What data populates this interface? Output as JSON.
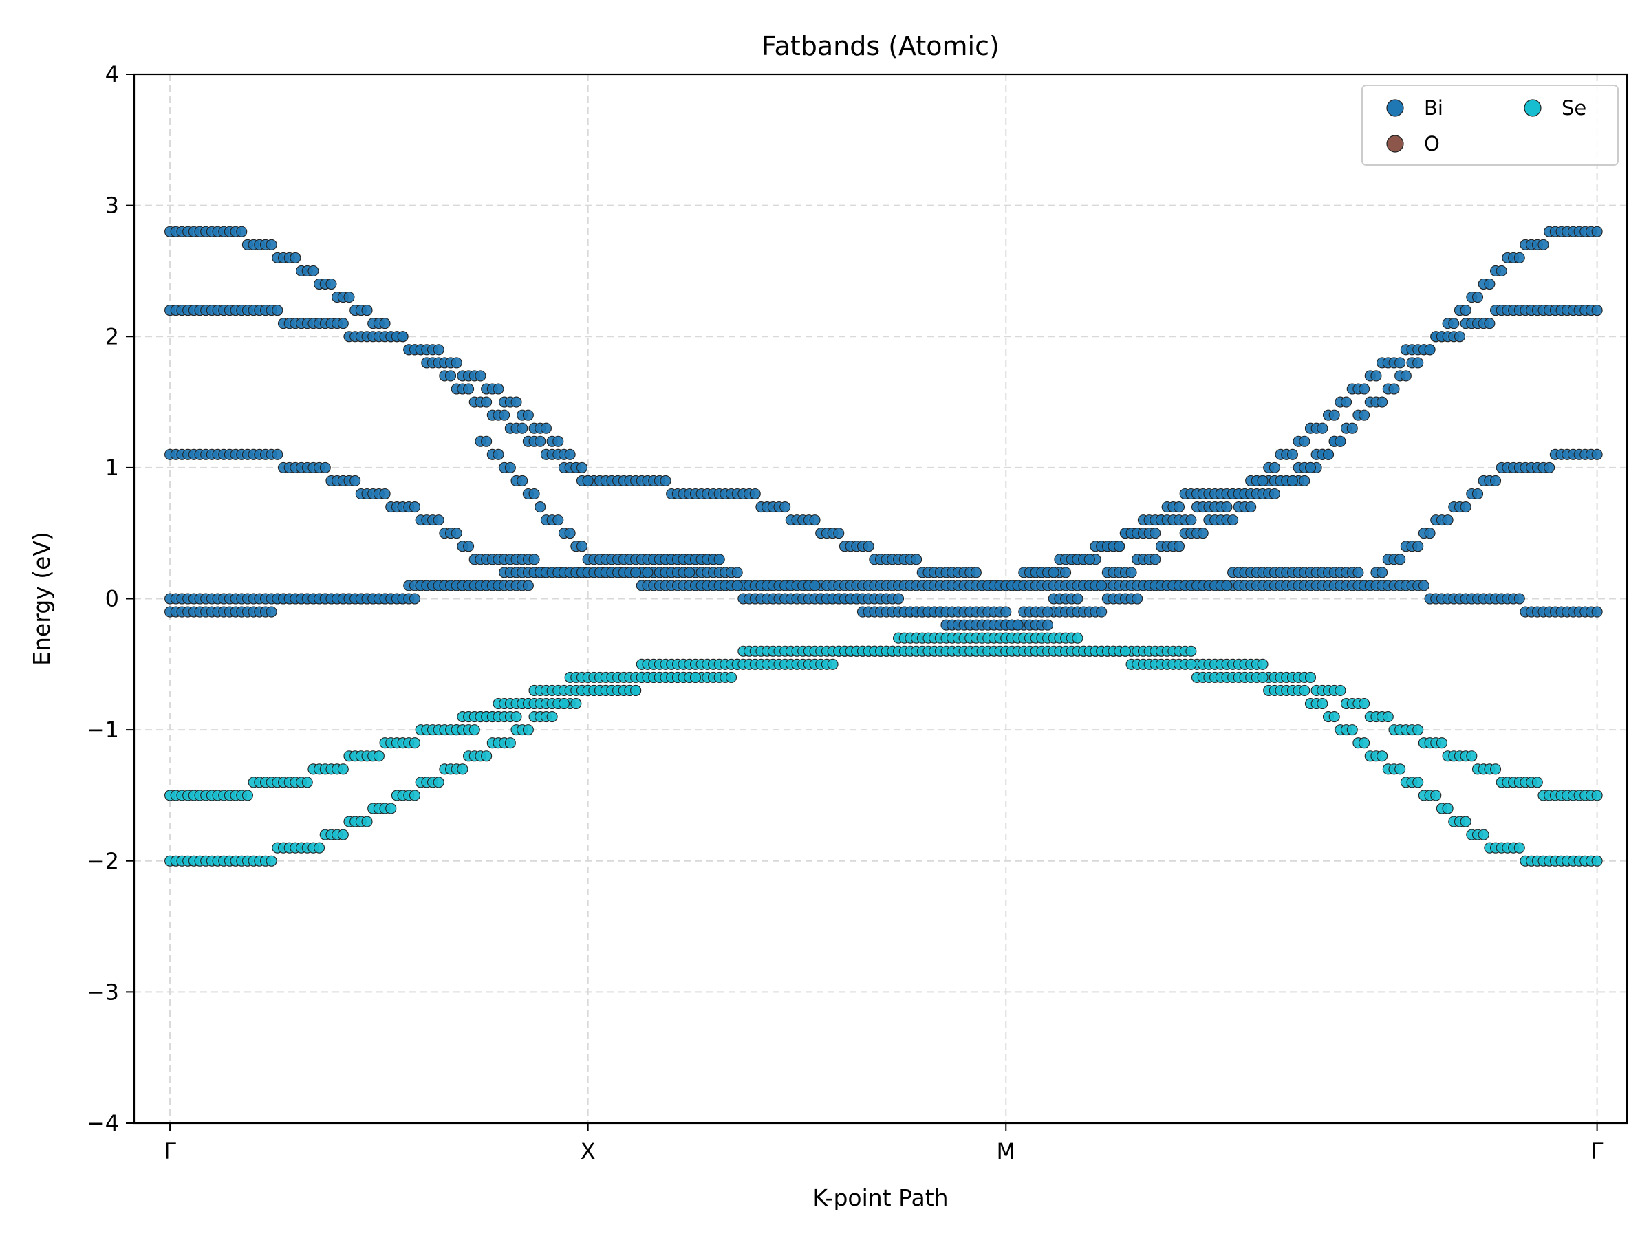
{
  "chart_data": {
    "type": "scatter",
    "title": "Fatbands (Atomic)",
    "xlabel": "K-point Path",
    "ylabel": "Energy (eV)",
    "ylim": [
      -4,
      4
    ],
    "yticks": [
      -4,
      -3,
      -2,
      -1,
      0,
      1,
      2,
      3,
      4
    ],
    "ytick_labels": [
      "−4",
      "−3",
      "−2",
      "−1",
      "0",
      "1",
      "2",
      "3",
      "4"
    ],
    "k_points": 60,
    "xticks": [
      {
        "k": 0,
        "label": "Γ"
      },
      {
        "k": 17.5,
        "label": "X"
      },
      {
        "k": 35,
        "label": "M"
      },
      {
        "k": 59.75,
        "label": "Γ"
      }
    ],
    "grid": true,
    "legend": {
      "position": "top-right",
      "columns": 2
    },
    "series": [
      {
        "name": "Bi",
        "color": "#1f77b4",
        "bands": [
          {
            "path": [
              [
                0,
                2.8
              ],
              [
                2.5,
                2.8
              ],
              [
                5,
                2.6
              ],
              [
                17.5,
                0.9
              ],
              [
                24,
                0.8
              ],
              [
                30,
                0.3
              ],
              [
                35,
                0.1
              ]
            ],
            "mirror": true
          },
          {
            "path": [
              [
                0,
                2.2
              ],
              [
                3,
                2.2
              ],
              [
                6,
                2.1
              ],
              [
                11,
                1.9
              ],
              [
                15,
                1.4
              ],
              [
                17.5,
                0.9
              ]
            ],
            "mirror": false
          },
          {
            "path": [
              [
                35,
                0.1
              ],
              [
                45,
                0.8
              ],
              [
                51,
                1.8
              ],
              [
                56,
                2.2
              ],
              [
                59.75,
                2.2
              ]
            ],
            "mirror": false
          },
          {
            "path": [
              [
                13,
                1.2
              ],
              [
                17.5,
                0.3
              ],
              [
                23,
                0.3
              ]
            ],
            "mirror": false
          },
          {
            "path": [
              [
                0,
                1.1
              ],
              [
                3,
                1.1
              ],
              [
                6,
                1.0
              ],
              [
                11,
                0.6
              ],
              [
                13,
                0.3
              ],
              [
                17.5,
                0.2
              ],
              [
                30,
                0.1
              ],
              [
                35,
                0.1
              ]
            ],
            "mirror": false
          },
          {
            "path": [
              [
                35,
                0.1
              ],
              [
                50,
                0.1
              ],
              [
                56,
                1.0
              ],
              [
                59.75,
                1.1
              ]
            ],
            "mirror": false
          },
          {
            "path": [
              [
                0,
                -0.1
              ],
              [
                4,
                -0.1
              ],
              [
                5,
                0.0
              ],
              [
                8,
                0.0
              ],
              [
                16,
                0.2
              ],
              [
                17.5,
                0.2
              ],
              [
                26,
                0.1
              ],
              [
                30,
                -0.1
              ],
              [
                35,
                -0.2
              ]
            ],
            "mirror": true
          },
          {
            "path": [
              [
                0,
                0.0
              ],
              [
                8,
                0.0
              ],
              [
                17.5,
                0.2
              ],
              [
                23,
                0.3
              ]
            ],
            "mirror": false
          },
          {
            "path": [
              [
                17.5,
                0.2
              ],
              [
                26,
                0.0
              ],
              [
                35,
                -0.1
              ]
            ],
            "mirror": false
          },
          {
            "path": [
              [
                35,
                -0.2
              ],
              [
                41,
                0.3
              ],
              [
                46,
                0.8
              ],
              [
                49,
                1.2
              ]
            ],
            "mirror": false
          }
        ]
      },
      {
        "name": "O",
        "color": "#8c564b",
        "bands": []
      },
      {
        "name": "Se",
        "color": "#17becf",
        "bands": [
          {
            "path": [
              [
                0,
                -1.5
              ],
              [
                2,
                -1.5
              ],
              [
                5,
                -1.4
              ],
              [
                17.5,
                -0.6
              ],
              [
                26,
                -0.4
              ],
              [
                35,
                -0.3
              ]
            ],
            "mirror": true
          },
          {
            "path": [
              [
                0,
                -2.0
              ],
              [
                3,
                -2.0
              ],
              [
                6,
                -1.9
              ],
              [
                13,
                -1.2
              ],
              [
                17.5,
                -0.7
              ],
              [
                30,
                -0.4
              ],
              [
                35,
                -0.4
              ]
            ],
            "mirror": true
          },
          {
            "path": [
              [
                12,
                -1.0
              ],
              [
                17.5,
                -0.7
              ],
              [
                22,
                -0.6
              ]
            ],
            "mirror": false
          }
        ]
      }
    ]
  }
}
